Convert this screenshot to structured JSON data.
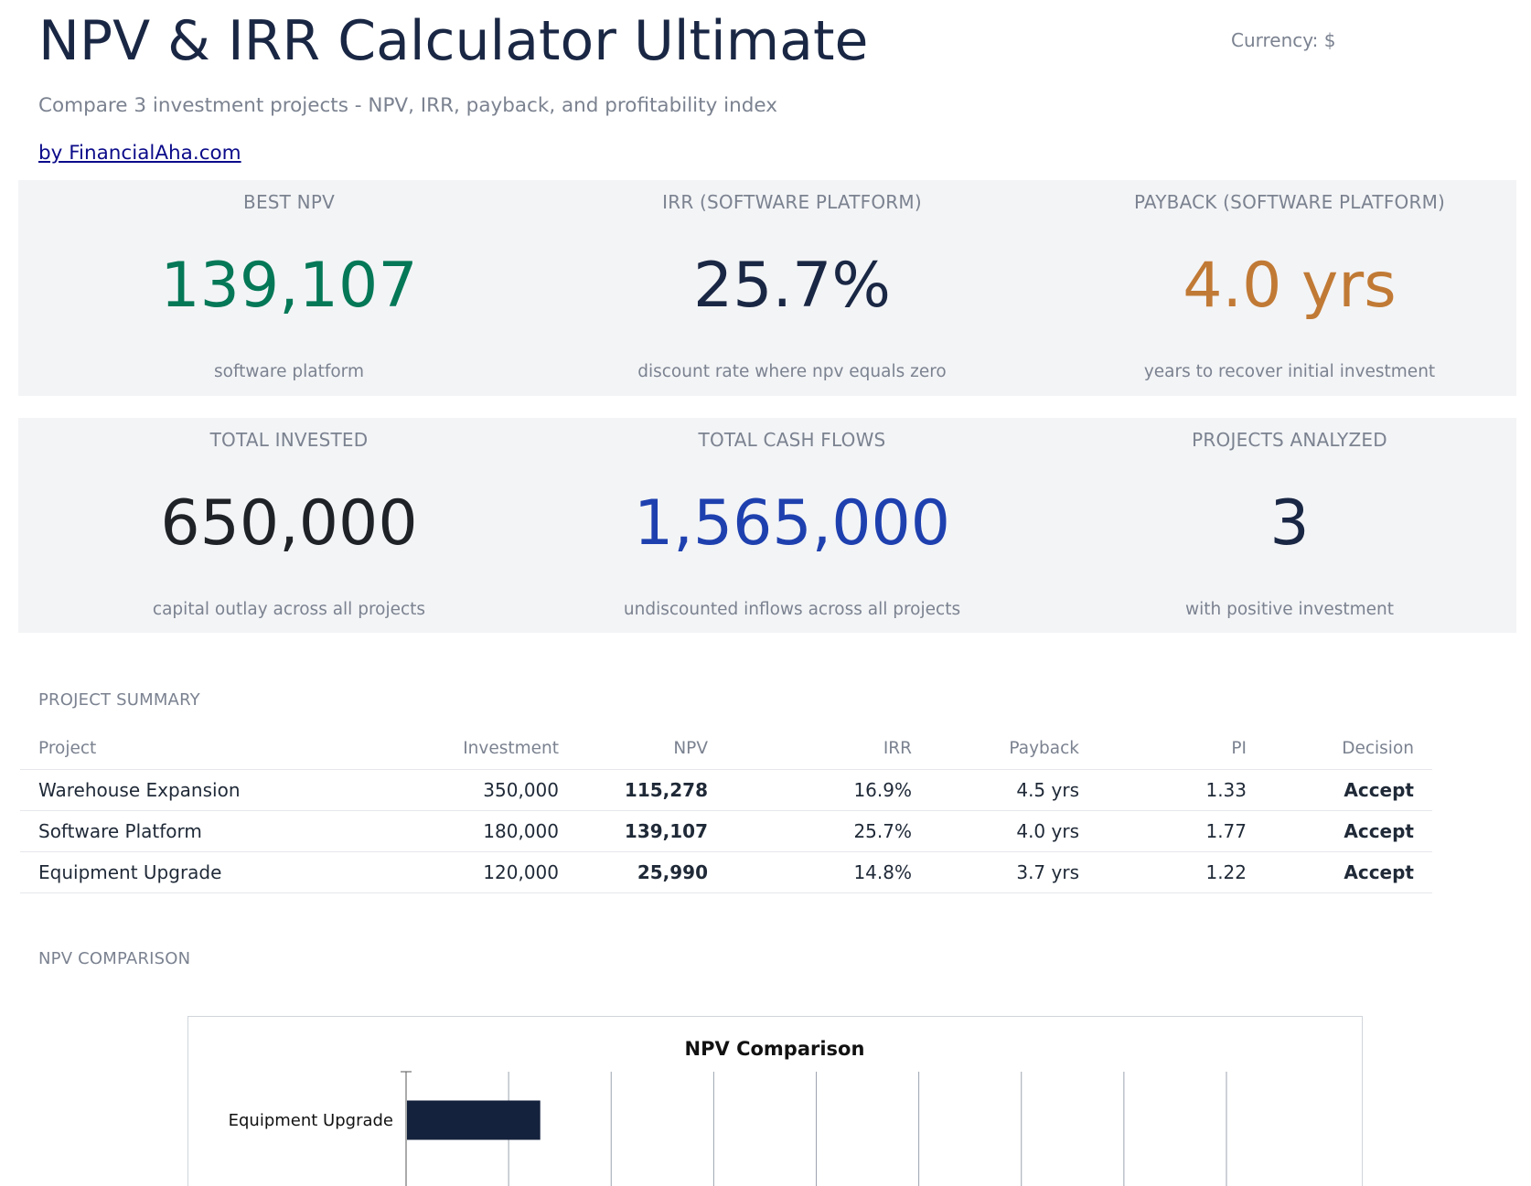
{
  "header": {
    "title": "NPV & IRR Calculator Ultimate",
    "currency": "Currency: $",
    "subtitle": "Compare 3 investment projects - NPV, IRR, payback, and profitability index",
    "byline": "by FinancialAha.com"
  },
  "kpis": [
    {
      "label": "BEST NPV",
      "value": "139,107",
      "sub": "software platform",
      "color": "#047857"
    },
    {
      "label": "IRR (SOFTWARE PLATFORM)",
      "value": "25.7%",
      "sub": "discount rate where npv equals zero",
      "color": "#1a2744"
    },
    {
      "label": "PAYBACK (SOFTWARE PLATFORM)",
      "value": "4.0 yrs",
      "sub": "years to recover initial investment",
      "color": "#c17a35"
    },
    {
      "label": "TOTAL INVESTED",
      "value": "650,000",
      "sub": "capital outlay across all projects",
      "color": "#1f2328"
    },
    {
      "label": "TOTAL CASH FLOWS",
      "value": "1,565,000",
      "sub": "undiscounted inflows across all projects",
      "color": "#1e40af"
    },
    {
      "label": "PROJECTS ANALYZED",
      "value": "3",
      "sub": "with positive investment",
      "color": "#1a2744"
    }
  ],
  "summary": {
    "section_title": "PROJECT SUMMARY",
    "columns": [
      "Project",
      "Investment",
      "NPV",
      "IRR",
      "Payback",
      "PI",
      "Decision"
    ],
    "rows": [
      [
        "Warehouse Expansion",
        "350,000",
        "115,278",
        "16.9%",
        "4.5 yrs",
        "1.33",
        "Accept"
      ],
      [
        "Software Platform",
        "180,000",
        "139,107",
        "25.7%",
        "4.0 yrs",
        "1.77",
        "Accept"
      ],
      [
        "Equipment Upgrade",
        "120,000",
        "25,990",
        "14.8%",
        "3.7 yrs",
        "1.22",
        "Accept"
      ]
    ]
  },
  "chart_section_title": "NPV COMPARISON",
  "chart_data": {
    "type": "bar",
    "orientation": "horizontal",
    "title": "NPV Comparison",
    "categories": [
      "Equipment Upgrade"
    ],
    "values": [
      25990
    ],
    "xlim": [
      0,
      160000
    ],
    "bar_color": "#15223d",
    "grid": true
  }
}
